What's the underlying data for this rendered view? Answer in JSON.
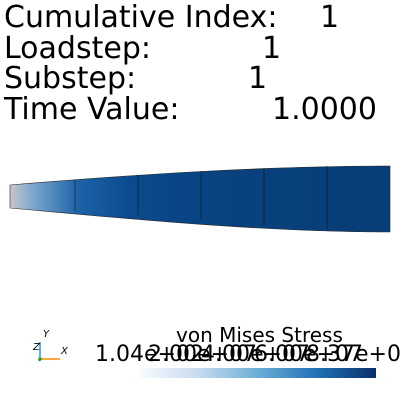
{
  "header": {
    "cumulative_index_label": "Cumulative Index:",
    "cumulative_index_value": "1",
    "loadstep_label": "Loadstep:",
    "loadstep_value": "1",
    "substep_label": "Substep:",
    "substep_value": "1",
    "time_value_label": "Time Value:",
    "time_value_value": "1.0000"
  },
  "scalar_bar": {
    "title": "von Mises Stress",
    "tick_labels": [
      "1.04e+02",
      "2.00e+07",
      "4.00e+07",
      "6.00e+07",
      "8.37e+07"
    ],
    "colors": {
      "low": "#f7fbff",
      "mid": "#6baed6",
      "high": "#08306b"
    }
  },
  "axes_widget": {
    "x_label": "X",
    "y_label": "Y",
    "z_label": "Z",
    "x_color": "#ff8c00",
    "y_color": "#1e90ff",
    "z_color": "#2ca02c"
  },
  "mesh": {
    "element_count": 6,
    "edge_color": "#1a1a1a"
  }
}
